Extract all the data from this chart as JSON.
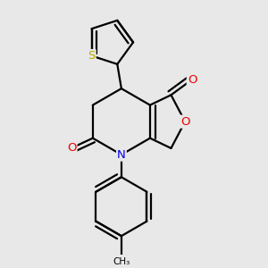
{
  "background_color": "#e8e8e8",
  "atom_colors": {
    "C": "#000000",
    "N": "#0000ee",
    "O": "#ee0000",
    "S": "#bbaa00"
  },
  "bond_color": "#000000",
  "bond_width": 1.6,
  "figsize": [
    3.0,
    3.0
  ],
  "dpi": 100
}
